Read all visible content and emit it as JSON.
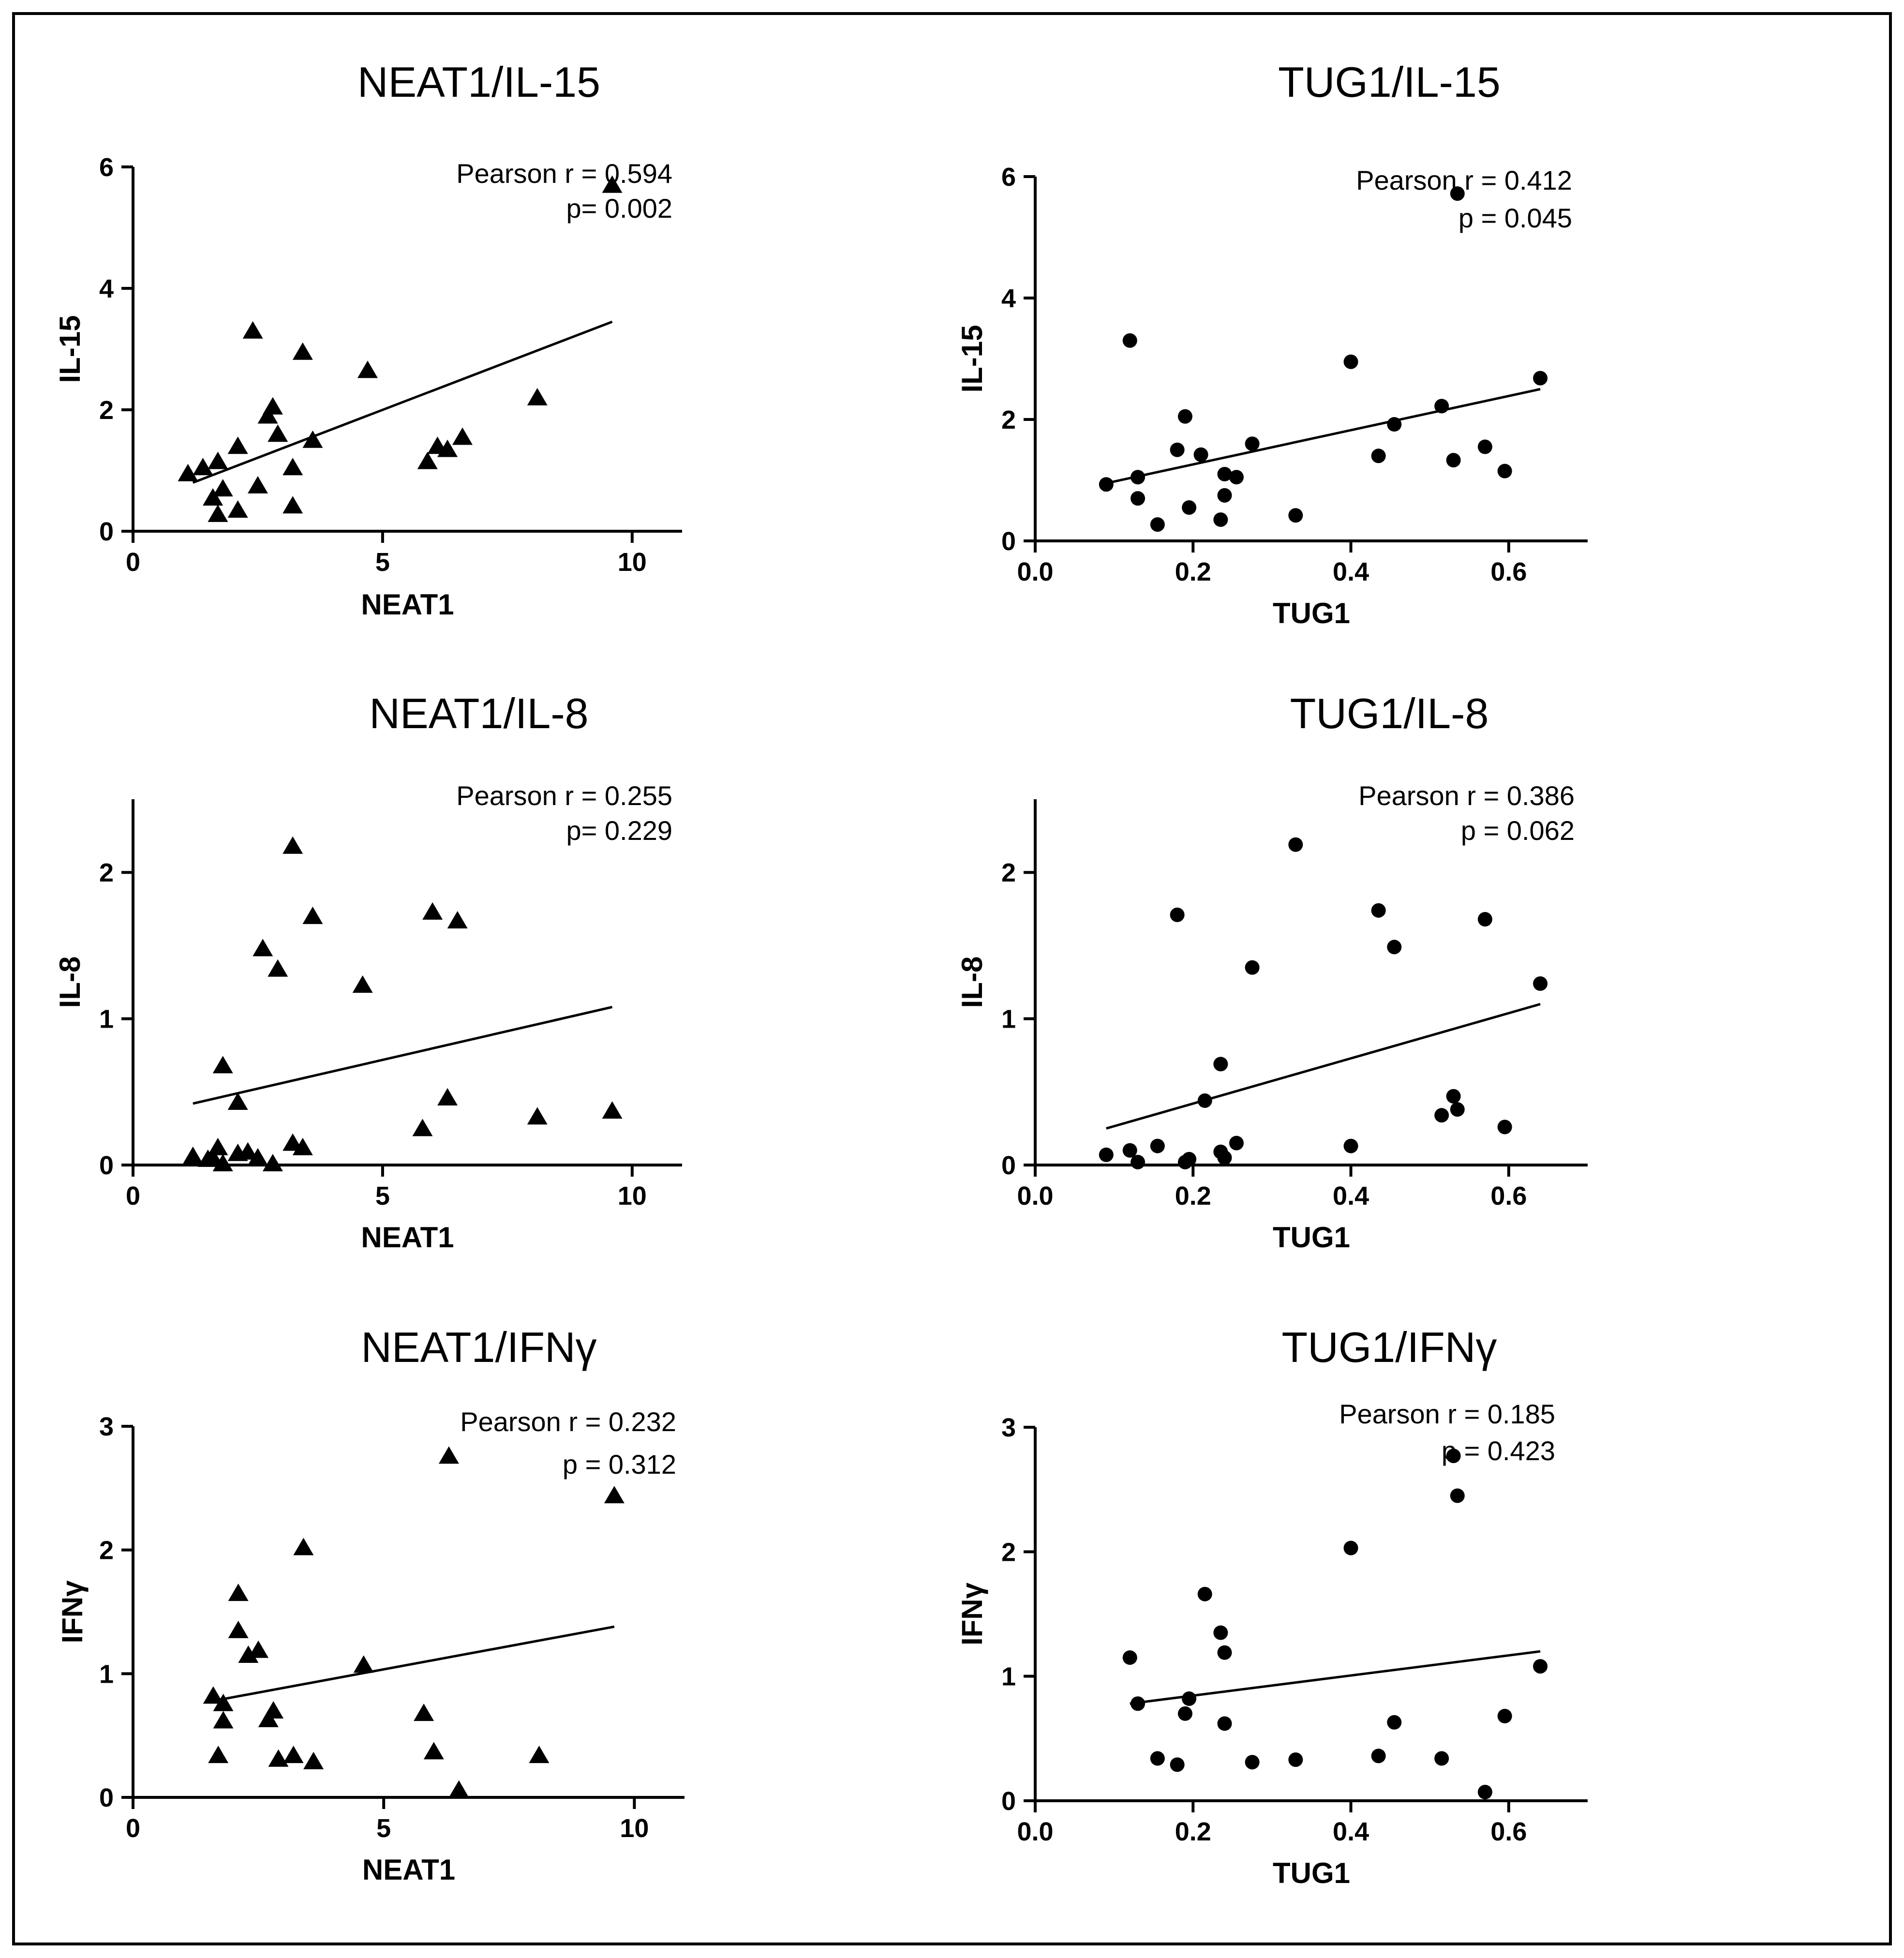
{
  "chart_data": [
    {
      "type": "scatter",
      "title": "NEAT1/IL-15",
      "xlabel": "NEAT1",
      "ylabel": "IL-15",
      "marker": "triangle",
      "xlim": [
        0,
        11
      ],
      "ylim": [
        0,
        6
      ],
      "xticks": [
        0,
        5,
        10
      ],
      "xtick_labels": [
        "0",
        "5",
        "10"
      ],
      "yticks": [
        0,
        2,
        4,
        6
      ],
      "ytick_labels": [
        "0",
        "2",
        "4",
        "6"
      ],
      "stats": [
        "Pearson r = 0.594",
        "p= 0.002"
      ],
      "fit": [
        [
          1.2,
          0.8
        ],
        [
          9.6,
          3.45
        ]
      ],
      "x": [
        1.1,
        1.4,
        1.6,
        1.7,
        1.7,
        1.8,
        2.1,
        2.1,
        2.4,
        2.5,
        2.7,
        2.8,
        2.9,
        3.2,
        3.2,
        3.4,
        3.6,
        4.7,
        5.9,
        6.1,
        6.3,
        6.6,
        8.1,
        9.6
      ],
      "y": [
        0.95,
        1.05,
        0.55,
        0.28,
        1.15,
        0.7,
        1.4,
        0.35,
        3.3,
        0.75,
        1.9,
        2.05,
        1.6,
        1.05,
        0.42,
        2.95,
        1.5,
        2.65,
        1.15,
        1.4,
        1.35,
        1.55,
        2.2,
        5.7
      ]
    },
    {
      "type": "scatter",
      "title": "TUG1/IL-15",
      "xlabel": "TUG1",
      "ylabel": "IL-15",
      "marker": "circle",
      "xlim": [
        0,
        0.7
      ],
      "ylim": [
        0,
        6
      ],
      "xticks": [
        0,
        0.2,
        0.4,
        0.6
      ],
      "xtick_labels": [
        "0.0",
        "0.2",
        "0.4",
        "0.6"
      ],
      "yticks": [
        0,
        2,
        4,
        6
      ],
      "ytick_labels": [
        "0",
        "2",
        "4",
        "6"
      ],
      "stats": [
        "Pearson r = 0.412",
        "p = 0.045"
      ],
      "fit": [
        [
          0.09,
          0.95
        ],
        [
          0.64,
          2.5
        ]
      ],
      "x": [
        0.09,
        0.12,
        0.13,
        0.13,
        0.155,
        0.18,
        0.19,
        0.195,
        0.21,
        0.235,
        0.24,
        0.24,
        0.255,
        0.275,
        0.33,
        0.4,
        0.435,
        0.455,
        0.515,
        0.53,
        0.535,
        0.57,
        0.595,
        0.64
      ],
      "y": [
        0.93,
        3.3,
        0.7,
        1.05,
        0.27,
        1.5,
        2.05,
        0.55,
        1.42,
        0.35,
        1.1,
        0.75,
        1.05,
        1.6,
        0.42,
        2.95,
        1.4,
        1.92,
        2.22,
        1.33,
        5.72,
        1.55,
        1.15,
        2.68
      ]
    },
    {
      "type": "scatter",
      "title": "NEAT1/IL-8",
      "xlabel": "NEAT1",
      "ylabel": "IL-8",
      "marker": "triangle",
      "xlim": [
        0,
        11
      ],
      "ylim": [
        0,
        2.5
      ],
      "xticks": [
        0,
        5,
        10
      ],
      "xtick_labels": [
        "0",
        "5",
        "10"
      ],
      "yticks": [
        0,
        1,
        2
      ],
      "ytick_labels": [
        "0",
        "1",
        "2"
      ],
      "stats": [
        "Pearson r = 0.255",
        "p= 0.229"
      ],
      "fit": [
        [
          1.2,
          0.42
        ],
        [
          9.6,
          1.08
        ]
      ],
      "x": [
        1.2,
        1.5,
        1.6,
        1.7,
        1.8,
        1.8,
        2.1,
        2.1,
        2.3,
        2.5,
        2.6,
        2.8,
        2.9,
        3.2,
        3.2,
        3.4,
        3.6,
        4.6,
        5.8,
        6.0,
        6.3,
        6.5,
        8.1,
        9.6
      ],
      "y": [
        0.06,
        0.04,
        0.05,
        0.12,
        0.68,
        0.01,
        0.43,
        0.08,
        0.09,
        0.05,
        1.48,
        0.01,
        1.34,
        2.18,
        0.15,
        0.12,
        1.7,
        1.23,
        0.25,
        1.73,
        0.46,
        1.67,
        0.33,
        0.37
      ]
    },
    {
      "type": "scatter",
      "title": "TUG1/IL-8",
      "xlabel": "TUG1",
      "ylabel": "IL-8",
      "marker": "circle",
      "xlim": [
        0,
        0.7
      ],
      "ylim": [
        0,
        2.5
      ],
      "xticks": [
        0,
        0.2,
        0.4,
        0.6
      ],
      "xtick_labels": [
        "0.0",
        "0.2",
        "0.4",
        "0.6"
      ],
      "yticks": [
        0,
        1,
        2
      ],
      "ytick_labels": [
        "0",
        "1",
        "2"
      ],
      "stats": [
        "Pearson r = 0.386",
        "p = 0.062"
      ],
      "fit": [
        [
          0.09,
          0.25
        ],
        [
          0.64,
          1.1
        ]
      ],
      "x": [
        0.09,
        0.12,
        0.13,
        0.155,
        0.18,
        0.19,
        0.195,
        0.215,
        0.235,
        0.235,
        0.24,
        0.255,
        0.275,
        0.33,
        0.4,
        0.435,
        0.455,
        0.515,
        0.53,
        0.535,
        0.57,
        0.595,
        0.64
      ],
      "y": [
        0.07,
        0.1,
        0.02,
        0.13,
        1.71,
        0.02,
        0.04,
        0.44,
        0.69,
        0.09,
        0.05,
        0.15,
        1.35,
        2.19,
        0.13,
        1.74,
        1.49,
        0.34,
        0.47,
        0.38,
        1.68,
        0.26,
        1.24
      ]
    },
    {
      "type": "scatter",
      "title": "NEAT1/IFNγ",
      "xlabel": "NEAT1",
      "ylabel": "IFNγ",
      "marker": "triangle",
      "xlim": [
        0,
        11
      ],
      "ylim": [
        0,
        3
      ],
      "xticks": [
        0,
        5,
        10
      ],
      "xtick_labels": [
        "0",
        "5",
        "10"
      ],
      "yticks": [
        0,
        1,
        2,
        3
      ],
      "ytick_labels": [
        "0",
        "1",
        "2",
        "3"
      ],
      "stats": [
        "Pearson r = 0.232",
        "p = 0.312"
      ],
      "fit": [
        [
          1.6,
          0.78
        ],
        [
          9.6,
          1.38
        ]
      ],
      "x": [
        1.6,
        1.7,
        1.8,
        1.8,
        2.1,
        2.1,
        2.3,
        2.5,
        2.7,
        2.8,
        2.9,
        3.2,
        3.4,
        3.6,
        4.6,
        5.8,
        6.0,
        6.3,
        6.5,
        8.1,
        9.6
      ],
      "y": [
        0.82,
        0.34,
        0.62,
        0.76,
        1.65,
        1.35,
        1.15,
        1.19,
        0.63,
        0.7,
        0.31,
        0.34,
        2.02,
        0.29,
        1.07,
        0.68,
        0.37,
        2.76,
        0.06,
        0.34,
        2.44
      ]
    },
    {
      "type": "scatter",
      "title": "TUG1/IFNγ",
      "xlabel": "TUG1",
      "ylabel": "IFNγ",
      "marker": "circle",
      "xlim": [
        0,
        0.7
      ],
      "ylim": [
        0,
        3
      ],
      "xticks": [
        0,
        0.2,
        0.4,
        0.6
      ],
      "xtick_labels": [
        "0.0",
        "0.2",
        "0.4",
        "0.6"
      ],
      "yticks": [
        0,
        1,
        2,
        3
      ],
      "ytick_labels": [
        "0",
        "1",
        "2",
        "3"
      ],
      "stats": [
        "Pearson r = 0.185",
        "p = 0.423"
      ],
      "fit": [
        [
          0.12,
          0.78
        ],
        [
          0.64,
          1.2
        ]
      ],
      "x": [
        0.12,
        0.13,
        0.155,
        0.18,
        0.19,
        0.195,
        0.215,
        0.235,
        0.24,
        0.24,
        0.275,
        0.33,
        0.4,
        0.435,
        0.455,
        0.515,
        0.53,
        0.535,
        0.57,
        0.595,
        0.64
      ],
      "y": [
        1.15,
        0.78,
        0.34,
        0.29,
        0.7,
        0.82,
        1.66,
        1.35,
        1.19,
        0.62,
        0.31,
        0.33,
        2.03,
        0.36,
        0.63,
        0.34,
        2.77,
        2.45,
        0.07,
        0.68,
        1.08
      ]
    }
  ]
}
